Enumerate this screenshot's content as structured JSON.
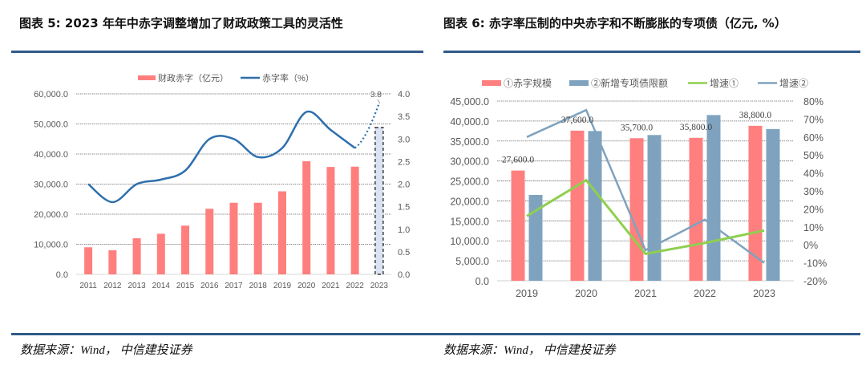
{
  "titles": {
    "left": "图表  5: 2023 年年中赤字调整增加了财政政策工具的灵活性",
    "right": "图表  6:  赤字率压制的中央赤字和不断膨胀的专项债（亿元, %）"
  },
  "sources": {
    "left": "数据来源：Wind，  中信建投证券",
    "right": "数据来源：Wind，  中信建投证券"
  },
  "colors": {
    "deficit_bar": "#ff7f7f",
    "deficit_rate_line": "#2e6fad",
    "special_bond_bar": "#7fa3bf",
    "growth1_line": "#8fcf4f",
    "growth2_line": "#7fa3bf",
    "projection_fill": "#dbe2f1",
    "rule": "#2f5a8a"
  },
  "chart_data": [
    {
      "type": "bar",
      "title": "2023 年年中赤字调整增加了财政政策工具的灵活性",
      "categories": [
        "2011",
        "2012",
        "2013",
        "2014",
        "2015",
        "2016",
        "2017",
        "2018",
        "2019",
        "2020",
        "2021",
        "2022",
        "2023"
      ],
      "series": [
        {
          "name": "财政赤字（亿元）",
          "type": "bar",
          "axis": "left",
          "values": [
            9000,
            8000,
            12000,
            13500,
            16200,
            21800,
            23800,
            23800,
            27600,
            37600,
            35700,
            35800,
            48800
          ],
          "projection_last": true
        },
        {
          "name": "赤字率（%）",
          "type": "line",
          "axis": "right",
          "smooth": true,
          "values": [
            2.0,
            1.6,
            2.0,
            2.1,
            2.3,
            3.0,
            3.0,
            2.6,
            2.8,
            3.6,
            3.2,
            2.8,
            3.8
          ],
          "projection_last": true
        }
      ],
      "annotations": [
        {
          "category": "2023",
          "series": "赤字率（%）",
          "text": "3.8"
        }
      ],
      "ylim": [
        0,
        60000
      ],
      "yticks": [
        "0.0",
        "10,000.0",
        "20,000.0",
        "30,000.0",
        "40,000.0",
        "50,000.0",
        "60,000.0"
      ],
      "y2lim": [
        0,
        4.0
      ],
      "y2ticks": [
        "0.0",
        "0.5",
        "1.0",
        "1.5",
        "2.0",
        "2.5",
        "3.0",
        "3.5",
        "4.0"
      ],
      "legend": [
        "财政赤字（亿元）",
        "赤字率（%）"
      ],
      "legend_position": "top",
      "grid": true,
      "xlabel": "",
      "ylabel": ""
    },
    {
      "type": "bar",
      "title": "赤字率压制的中央赤字和不断膨胀的专项债（亿元, %）",
      "categories": [
        "2019",
        "2020",
        "2021",
        "2022",
        "2023"
      ],
      "series": [
        {
          "name": "①赤字规模",
          "type": "bar",
          "axis": "left",
          "values": [
            27600,
            37600,
            35700,
            35800,
            38800
          ],
          "data_labels": [
            "27,600.0",
            "37,600.0",
            "35,700.0",
            "35,800.0",
            "38,800.0"
          ]
        },
        {
          "name": "②新增专项债限额",
          "type": "bar",
          "axis": "left",
          "values": [
            21500,
            37500,
            36500,
            41500,
            38000
          ]
        },
        {
          "name": "增速①",
          "type": "line",
          "axis": "right",
          "values": [
            16,
            36,
            -5,
            1,
            8
          ]
        },
        {
          "name": "增速②",
          "type": "line",
          "axis": "right",
          "values": [
            60,
            75,
            -3,
            14,
            -10
          ]
        }
      ],
      "ylim": [
        0,
        45000
      ],
      "yticks": [
        "0.0",
        "5,000.0",
        "10,000.0",
        "15,000.0",
        "20,000.0",
        "25,000.0",
        "30,000.0",
        "35,000.0",
        "40,000.0",
        "45,000.0"
      ],
      "y2lim": [
        -20,
        80
      ],
      "y2ticks": [
        "-20%",
        "-10%",
        "0%",
        "10%",
        "20%",
        "30%",
        "40%",
        "50%",
        "60%",
        "70%",
        "80%"
      ],
      "legend": [
        "①赤字规模",
        "②新增专项债限额",
        "增速①",
        "增速②"
      ],
      "legend_position": "top",
      "grid": true,
      "xlabel": "",
      "ylabel": ""
    }
  ]
}
